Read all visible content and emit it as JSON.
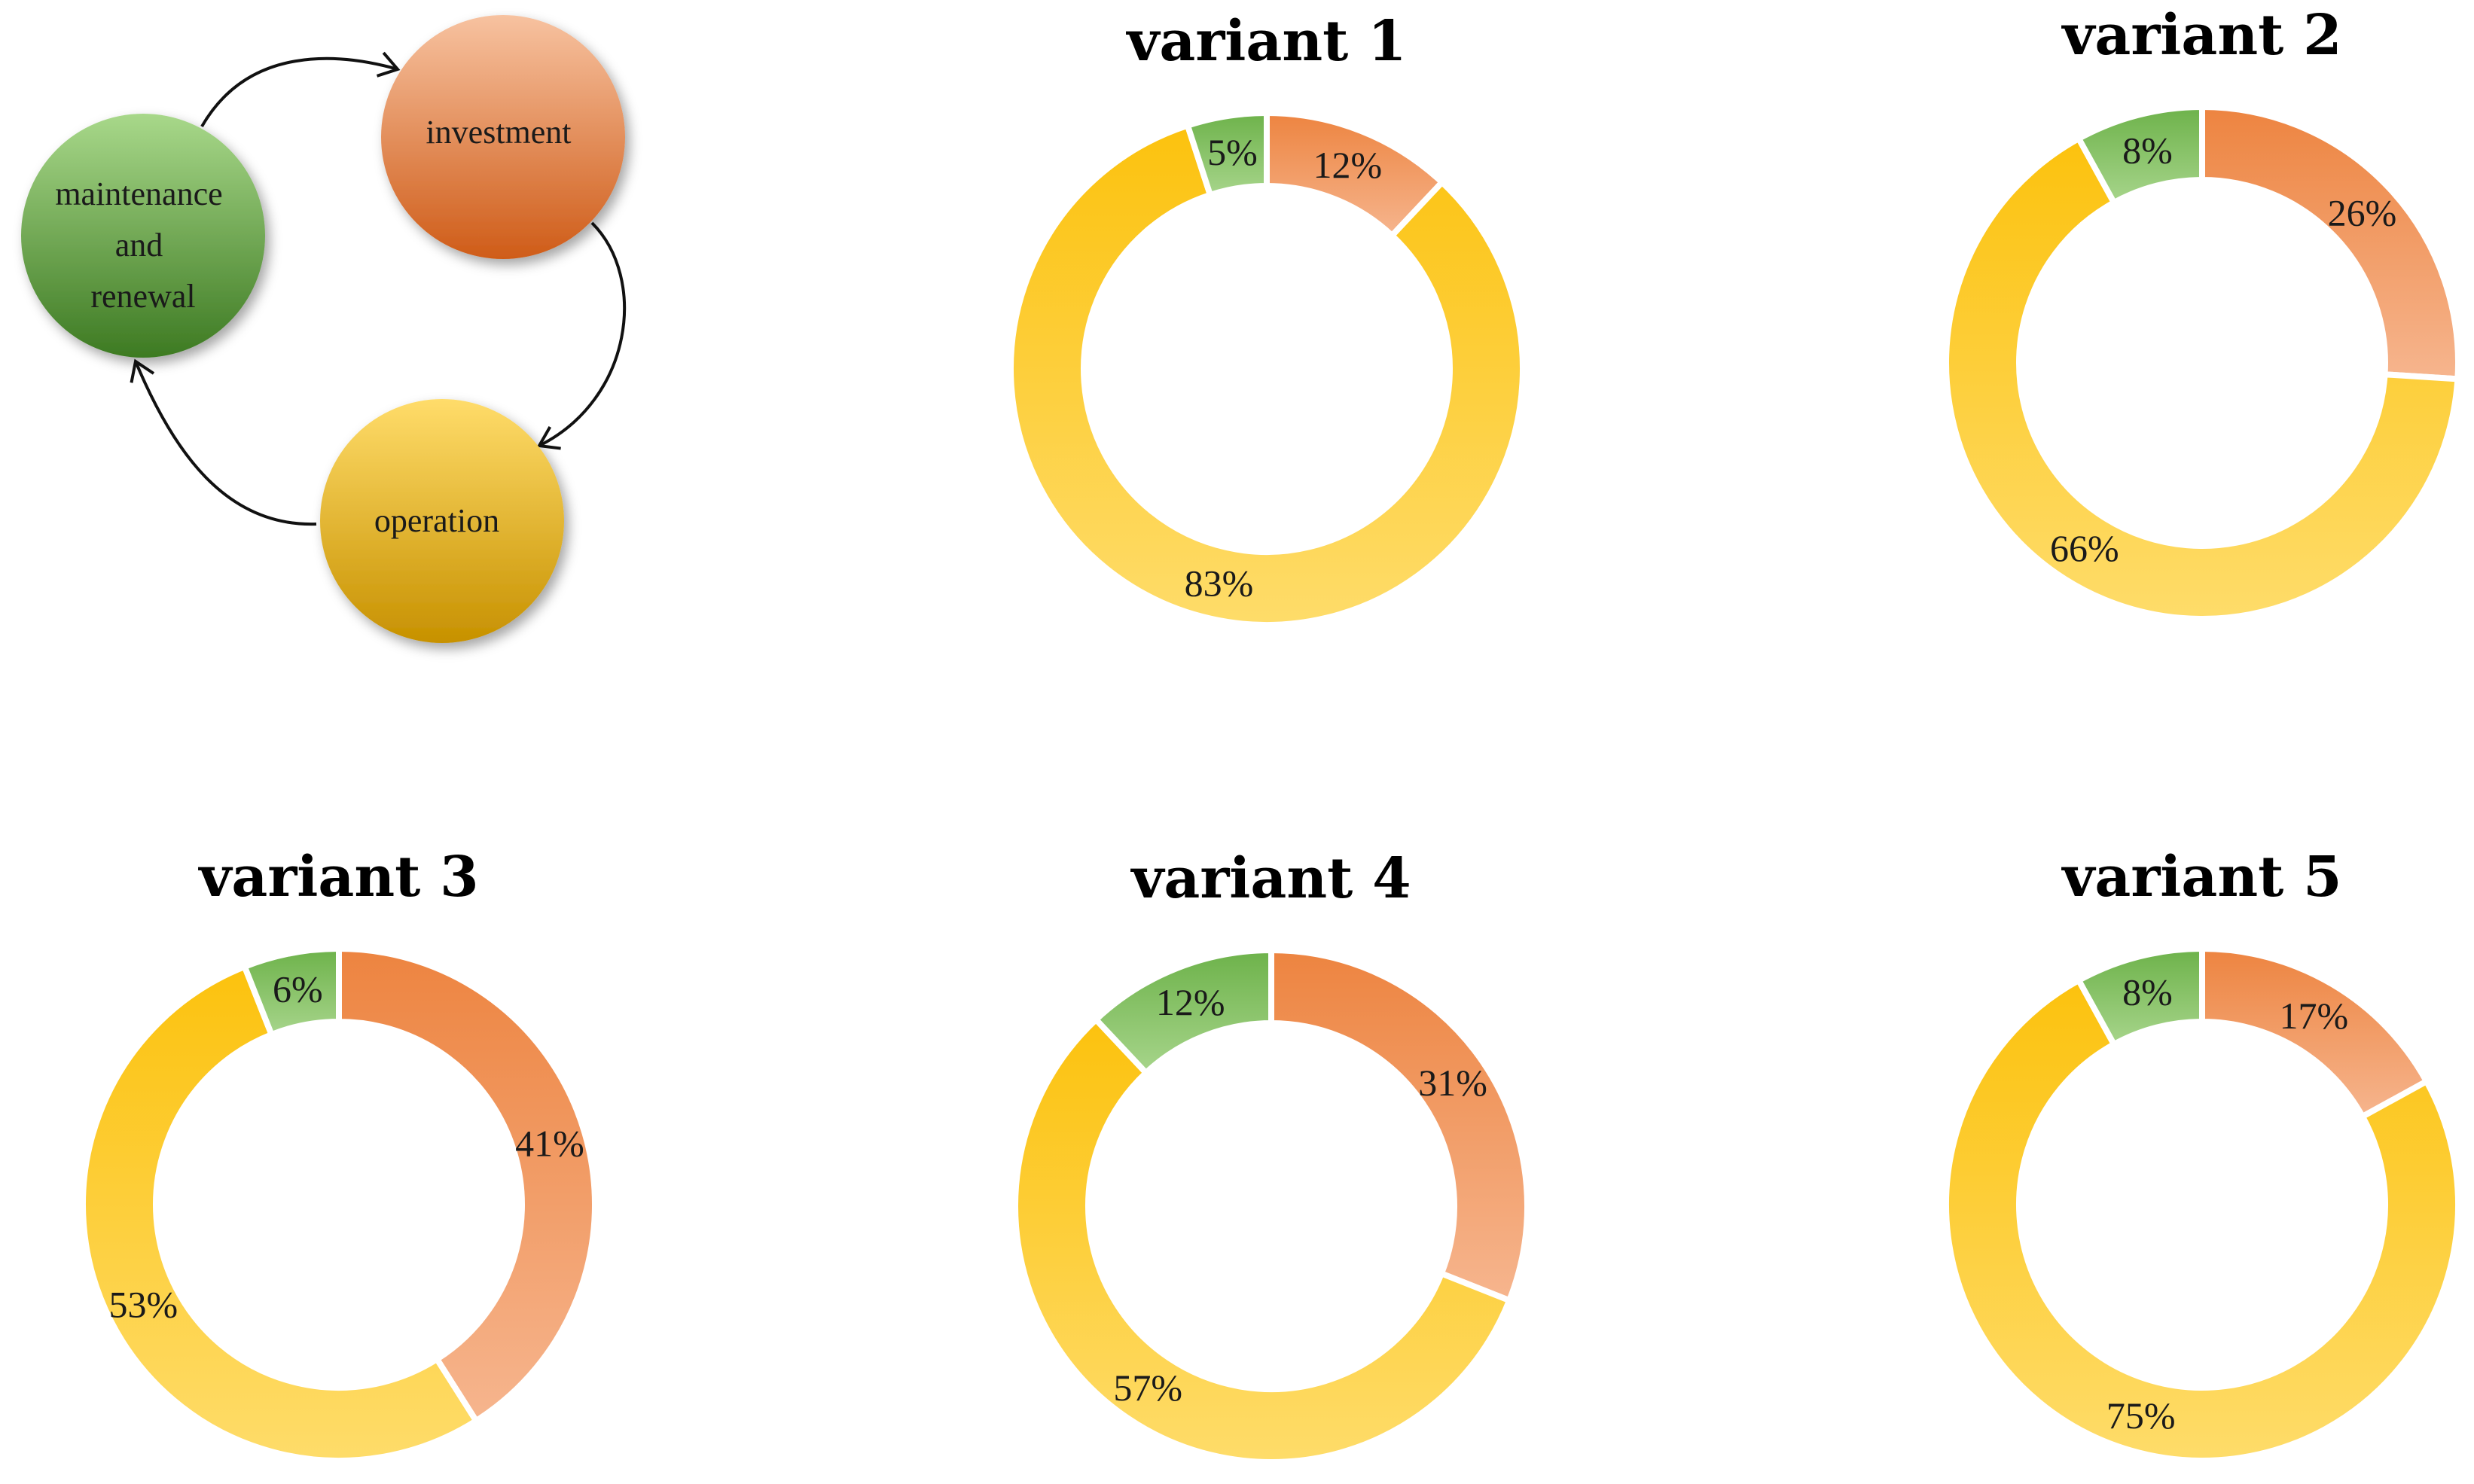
{
  "cycle": {
    "nodes": [
      {
        "id": "investment",
        "lines": [
          "investment"
        ],
        "color": "#e8875a"
      },
      {
        "id": "operation",
        "lines": [
          "operation"
        ],
        "color": "#f2c12e"
      },
      {
        "id": "maintenance",
        "lines": [
          "maintenance",
          "and",
          "renewal"
        ],
        "color": "#5e9e41"
      }
    ]
  },
  "colors": {
    "investment": "#f0a070",
    "operation": "#ffcf3a",
    "maintenance": "#80bd62"
  },
  "chart_data": [
    {
      "type": "pie",
      "title": "variant 1",
      "categories": [
        "investment",
        "operation",
        "maintenance and renewal"
      ],
      "values": [
        12,
        83,
        5
      ]
    },
    {
      "type": "pie",
      "title": "variant 2",
      "categories": [
        "investment",
        "operation",
        "maintenance and renewal"
      ],
      "values": [
        26,
        66,
        8
      ]
    },
    {
      "type": "pie",
      "title": "variant 3",
      "categories": [
        "investment",
        "operation",
        "maintenance and renewal"
      ],
      "values": [
        41,
        53,
        6
      ]
    },
    {
      "type": "pie",
      "title": "variant 4",
      "categories": [
        "investment",
        "operation",
        "maintenance and renewal"
      ],
      "values": [
        31,
        57,
        12
      ]
    },
    {
      "type": "pie",
      "title": "variant 5",
      "categories": [
        "investment",
        "operation",
        "maintenance and renewal"
      ],
      "values": [
        17,
        75,
        8
      ]
    }
  ]
}
